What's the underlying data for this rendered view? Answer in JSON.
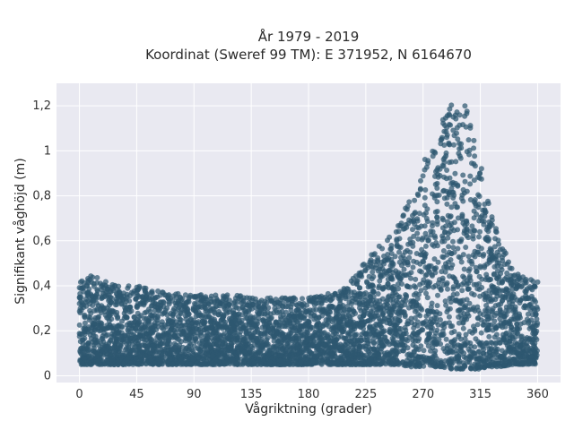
{
  "chart_data": {
    "type": "scatter",
    "title": "År 1979 - 2019",
    "subtitle": "Koordinat (Sweref 99 TM): E 371952, N 6164670",
    "xlabel": "Vågriktning (grader)",
    "ylabel": "Signifikant våghöjd (m)",
    "xlim": [
      -18,
      378
    ],
    "ylim": [
      -0.03,
      1.3
    ],
    "x_ticks": [
      0,
      45,
      90,
      135,
      180,
      225,
      270,
      315,
      360
    ],
    "x_tick_labels": [
      "0",
      "45",
      "90",
      "135",
      "180",
      "225",
      "270",
      "315",
      "360"
    ],
    "y_ticks": [
      0,
      0.2,
      0.4,
      0.6,
      0.8,
      1.0,
      1.2
    ],
    "y_tick_labels": [
      "0",
      "0,2",
      "0,4",
      "0,6",
      "0,8",
      "1",
      "1,2"
    ],
    "grid": true,
    "colors": {
      "marker": "#2e5870",
      "plot_bg": "#e9e9f1"
    },
    "envelope": {
      "direction": [
        0,
        10,
        20,
        30,
        45,
        60,
        90,
        120,
        135,
        150,
        180,
        200,
        210,
        220,
        225,
        230,
        240,
        250,
        260,
        270,
        280,
        285,
        290,
        295,
        300,
        305,
        310,
        315,
        320,
        330,
        340,
        350,
        360
      ],
      "height_min": [
        0.05,
        0.05,
        0.05,
        0.05,
        0.05,
        0.05,
        0.05,
        0.05,
        0.05,
        0.05,
        0.05,
        0.05,
        0.05,
        0.05,
        0.05,
        0.05,
        0.05,
        0.05,
        0.04,
        0.04,
        0.04,
        0.04,
        0.03,
        0.03,
        0.03,
        0.03,
        0.03,
        0.03,
        0.04,
        0.04,
        0.05,
        0.05,
        0.05
      ],
      "height_max": [
        0.44,
        0.45,
        0.42,
        0.4,
        0.4,
        0.38,
        0.36,
        0.36,
        0.36,
        0.35,
        0.35,
        0.37,
        0.4,
        0.47,
        0.52,
        0.55,
        0.6,
        0.68,
        0.8,
        0.94,
        1.1,
        1.17,
        1.2,
        1.24,
        1.23,
        1.18,
        1.08,
        0.95,
        0.8,
        0.6,
        0.49,
        0.44,
        0.42
      ]
    }
  }
}
